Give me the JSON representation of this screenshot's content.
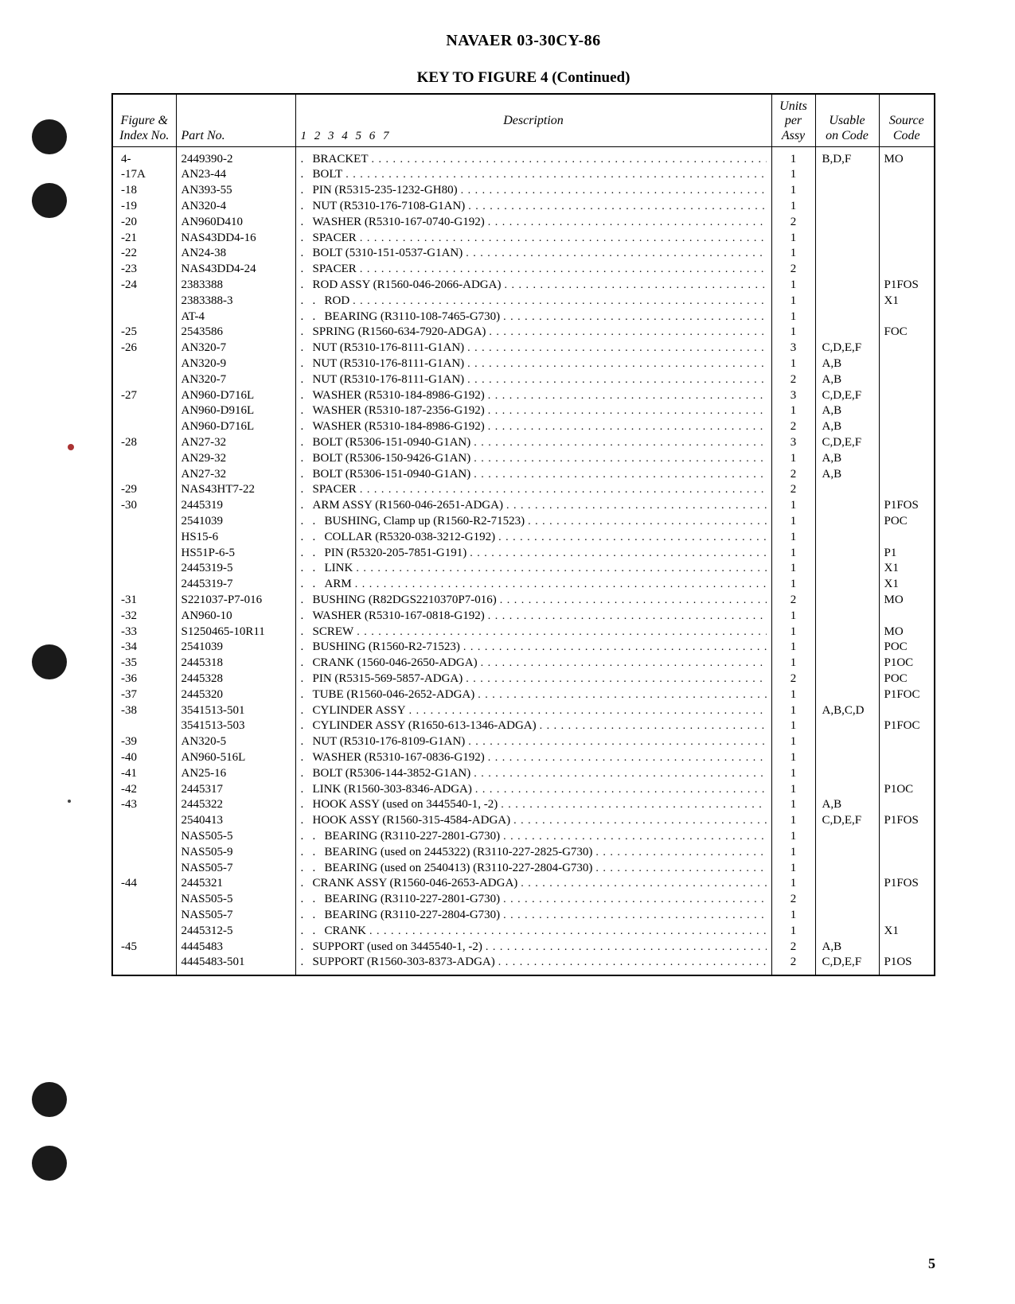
{
  "doc_header": "NAVAER 03-30CY-86",
  "table_title": "KEY TO FIGURE 4 (Continued)",
  "page_number": "5",
  "columns": {
    "figure": "Figure &\nIndex No.",
    "part": "Part No.",
    "desc_nums": "1  2  3  4  5  6  7",
    "desc_label": "Description",
    "units": "Units\nper\nAssy",
    "usable": "Usable\non Code",
    "source": "Source\nCode"
  },
  "rows": [
    {
      "fig": "4-",
      "part": "2449390-2",
      "indent": 1,
      "desc": "BRACKET",
      "units": "1",
      "use": "B,D,F",
      "src": "MO"
    },
    {
      "fig": "-17A",
      "part": "AN23-44",
      "indent": 1,
      "desc": "BOLT",
      "units": "1",
      "use": "",
      "src": ""
    },
    {
      "fig": "-18",
      "part": "AN393-55",
      "indent": 1,
      "desc": "PIN (R5315-235-1232-GH80)",
      "units": "1",
      "use": "",
      "src": ""
    },
    {
      "fig": "-19",
      "part": "AN320-4",
      "indent": 1,
      "desc": "NUT (R5310-176-7108-G1AN)",
      "units": "1",
      "use": "",
      "src": ""
    },
    {
      "fig": "-20",
      "part": "AN960D410",
      "indent": 1,
      "desc": "WASHER (R5310-167-0740-G192)",
      "units": "2",
      "use": "",
      "src": ""
    },
    {
      "fig": "-21",
      "part": "NAS43DD4-16",
      "indent": 1,
      "desc": "SPACER",
      "units": "1",
      "use": "",
      "src": ""
    },
    {
      "fig": "-22",
      "part": "AN24-38",
      "indent": 1,
      "desc": "BOLT (5310-151-0537-G1AN)",
      "units": "1",
      "use": "",
      "src": ""
    },
    {
      "fig": "-23",
      "part": "NAS43DD4-24",
      "indent": 1,
      "desc": "SPACER",
      "units": "2",
      "use": "",
      "src": ""
    },
    {
      "fig": "-24",
      "part": "2383388",
      "indent": 1,
      "desc": "ROD ASSY (R1560-046-2066-ADGA)",
      "units": "1",
      "use": "",
      "src": "P1FOS"
    },
    {
      "fig": "",
      "part": "2383388-3",
      "indent": 2,
      "desc": "ROD",
      "units": "1",
      "use": "",
      "src": "X1"
    },
    {
      "fig": "",
      "part": "AT-4",
      "indent": 2,
      "desc": "BEARING (R3110-108-7465-G730)",
      "units": "1",
      "use": "",
      "src": ""
    },
    {
      "fig": "-25",
      "part": "2543586",
      "indent": 1,
      "desc": "SPRING (R1560-634-7920-ADGA)",
      "units": "1",
      "use": "",
      "src": "FOC"
    },
    {
      "fig": "-26",
      "part": "AN320-7",
      "indent": 1,
      "desc": "NUT (R5310-176-8111-G1AN)",
      "units": "3",
      "use": "C,D,E,F",
      "src": ""
    },
    {
      "fig": "",
      "part": "AN320-9",
      "indent": 1,
      "desc": "NUT (R5310-176-8111-G1AN)",
      "units": "1",
      "use": "A,B",
      "src": ""
    },
    {
      "fig": "",
      "part": "AN320-7",
      "indent": 1,
      "desc": "NUT (R5310-176-8111-G1AN)",
      "units": "2",
      "use": "A,B",
      "src": ""
    },
    {
      "fig": "-27",
      "part": "AN960-D716L",
      "indent": 1,
      "desc": "WASHER (R5310-184-8986-G192)",
      "units": "3",
      "use": "C,D,E,F",
      "src": ""
    },
    {
      "fig": "",
      "part": "AN960-D916L",
      "indent": 1,
      "desc": "WASHER (R5310-187-2356-G192)",
      "units": "1",
      "use": "A,B",
      "src": ""
    },
    {
      "fig": "",
      "part": "AN960-D716L",
      "indent": 1,
      "desc": "WASHER (R5310-184-8986-G192)",
      "units": "2",
      "use": "A,B",
      "src": ""
    },
    {
      "fig": "-28",
      "part": "AN27-32",
      "indent": 1,
      "desc": "BOLT (R5306-151-0940-G1AN)",
      "units": "3",
      "use": "C,D,E,F",
      "src": ""
    },
    {
      "fig": "",
      "part": "AN29-32",
      "indent": 1,
      "desc": "BOLT (R5306-150-9426-G1AN)",
      "units": "1",
      "use": "A,B",
      "src": ""
    },
    {
      "fig": "",
      "part": "AN27-32",
      "indent": 1,
      "desc": "BOLT (R5306-151-0940-G1AN)",
      "units": "2",
      "use": "A,B",
      "src": ""
    },
    {
      "fig": "-29",
      "part": "NAS43HT7-22",
      "indent": 1,
      "desc": "SPACER",
      "units": "2",
      "use": "",
      "src": ""
    },
    {
      "fig": "-30",
      "part": "2445319",
      "indent": 1,
      "desc": "ARM ASSY (R1560-046-2651-ADGA)",
      "units": "1",
      "use": "",
      "src": "P1FOS"
    },
    {
      "fig": "",
      "part": "2541039",
      "indent": 2,
      "desc": "BUSHING, Clamp up (R1560-R2-71523)",
      "units": "1",
      "use": "",
      "src": "POC"
    },
    {
      "fig": "",
      "part": "HS15-6",
      "indent": 2,
      "desc": "COLLAR (R5320-038-3212-G192)",
      "units": "1",
      "use": "",
      "src": ""
    },
    {
      "fig": "",
      "part": "HS51P-6-5",
      "indent": 2,
      "desc": "PIN (R5320-205-7851-G191)",
      "units": "1",
      "use": "",
      "src": "P1"
    },
    {
      "fig": "",
      "part": "2445319-5",
      "indent": 2,
      "desc": "LINK",
      "units": "1",
      "use": "",
      "src": "X1"
    },
    {
      "fig": "",
      "part": "2445319-7",
      "indent": 2,
      "desc": "ARM",
      "units": "1",
      "use": "",
      "src": "X1"
    },
    {
      "fig": "-31",
      "part": "S221037-P7-016",
      "indent": 1,
      "desc": "BUSHING (R82DGS2210370P7-016)",
      "units": "2",
      "use": "",
      "src": "MO"
    },
    {
      "fig": "-32",
      "part": "AN960-10",
      "indent": 1,
      "desc": "WASHER (R5310-167-0818-G192)",
      "units": "1",
      "use": "",
      "src": ""
    },
    {
      "fig": "-33",
      "part": "S1250465-10R11",
      "indent": 1,
      "desc": "SCREW",
      "units": "1",
      "use": "",
      "src": "MO"
    },
    {
      "fig": "-34",
      "part": "2541039",
      "indent": 1,
      "desc": "BUSHING (R1560-R2-71523)",
      "units": "1",
      "use": "",
      "src": "POC"
    },
    {
      "fig": "-35",
      "part": "2445318",
      "indent": 1,
      "desc": "CRANK (1560-046-2650-ADGA)",
      "units": "1",
      "use": "",
      "src": "P1OC"
    },
    {
      "fig": "-36",
      "part": "2445328",
      "indent": 1,
      "desc": "PIN (R5315-569-5857-ADGA)",
      "units": "2",
      "use": "",
      "src": "POC"
    },
    {
      "fig": "-37",
      "part": "2445320",
      "indent": 1,
      "desc": "TUBE (R1560-046-2652-ADGA)",
      "units": "1",
      "use": "",
      "src": "P1FOC"
    },
    {
      "fig": "-38",
      "part": "3541513-501",
      "indent": 1,
      "desc": "CYLINDER ASSY",
      "units": "1",
      "use": "A,B,C,D",
      "src": ""
    },
    {
      "fig": "",
      "part": "3541513-503",
      "indent": 1,
      "desc": "CYLINDER ASSY (R1650-613-1346-ADGA)",
      "units": "1",
      "use": "",
      "src": "P1FOC"
    },
    {
      "fig": "-39",
      "part": "AN320-5",
      "indent": 1,
      "desc": "NUT (R5310-176-8109-G1AN)",
      "units": "1",
      "use": "",
      "src": ""
    },
    {
      "fig": "-40",
      "part": "AN960-516L",
      "indent": 1,
      "desc": "WASHER (R5310-167-0836-G192)",
      "units": "1",
      "use": "",
      "src": ""
    },
    {
      "fig": "-41",
      "part": "AN25-16",
      "indent": 1,
      "desc": "BOLT (R5306-144-3852-G1AN)",
      "units": "1",
      "use": "",
      "src": ""
    },
    {
      "fig": "-42",
      "part": "2445317",
      "indent": 1,
      "desc": "LINK (R1560-303-8346-ADGA)",
      "units": "1",
      "use": "",
      "src": "P1OC"
    },
    {
      "fig": "-43",
      "part": "2445322",
      "indent": 1,
      "desc": "HOOK ASSY (used on 3445540-1, -2)",
      "units": "1",
      "use": "A,B",
      "src": ""
    },
    {
      "fig": "",
      "part": "2540413",
      "indent": 1,
      "desc": "HOOK ASSY (R1560-315-4584-ADGA)",
      "units": "1",
      "use": "C,D,E,F",
      "src": "P1FOS"
    },
    {
      "fig": "",
      "part": "NAS505-5",
      "indent": 2,
      "desc": "BEARING (R3110-227-2801-G730)",
      "units": "1",
      "use": "",
      "src": ""
    },
    {
      "fig": "",
      "part": "NAS505-9",
      "indent": 2,
      "desc": "BEARING (used on 2445322) (R3110-227-2825-G730)",
      "units": "1",
      "use": "",
      "src": ""
    },
    {
      "fig": "",
      "part": "NAS505-7",
      "indent": 2,
      "desc": "BEARING (used on 2540413) (R3110-227-2804-G730)",
      "units": "1",
      "use": "",
      "src": ""
    },
    {
      "fig": "-44",
      "part": "2445321",
      "indent": 1,
      "desc": "CRANK ASSY (R1560-046-2653-ADGA)",
      "units": "1",
      "use": "",
      "src": "P1FOS"
    },
    {
      "fig": "",
      "part": "NAS505-5",
      "indent": 2,
      "desc": "BEARING (R3110-227-2801-G730)",
      "units": "2",
      "use": "",
      "src": ""
    },
    {
      "fig": "",
      "part": "NAS505-7",
      "indent": 2,
      "desc": "BEARING (R3110-227-2804-G730)",
      "units": "1",
      "use": "",
      "src": ""
    },
    {
      "fig": "",
      "part": "2445312-5",
      "indent": 2,
      "desc": "CRANK",
      "units": "1",
      "use": "",
      "src": "X1"
    },
    {
      "fig": "-45",
      "part": "4445483",
      "indent": 1,
      "desc": "SUPPORT (used on 3445540-1, -2)",
      "units": "2",
      "use": "A,B",
      "src": ""
    },
    {
      "fig": "",
      "part": "4445483-501",
      "indent": 1,
      "desc": "SUPPORT (R1560-303-8373-ADGA)",
      "units": "2",
      "use": "C,D,E,F",
      "src": "P1OS"
    }
  ]
}
